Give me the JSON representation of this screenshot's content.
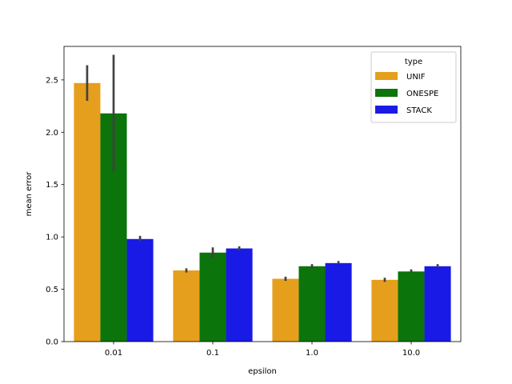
{
  "chart_data": {
    "type": "bar",
    "xlabel": "epsilon",
    "ylabel": "mean error",
    "categories": [
      "0.01",
      "0.1",
      "1.0",
      "10.0"
    ],
    "ylim": [
      0,
      2.82
    ],
    "yticks": [
      0.0,
      0.5,
      1.0,
      1.5,
      2.0,
      2.5
    ],
    "ytick_labels": [
      "0.0",
      "0.5",
      "1.0",
      "1.5",
      "2.0",
      "2.5"
    ],
    "legend": {
      "title": "type",
      "position": "top-right"
    },
    "series": [
      {
        "name": "UNIF",
        "color": "#e69f1c",
        "values": [
          2.47,
          0.68,
          0.6,
          0.59
        ],
        "err_low": [
          2.3,
          0.66,
          0.58,
          0.57
        ],
        "err_high": [
          2.64,
          0.7,
          0.62,
          0.61
        ]
      },
      {
        "name": "ONESPE",
        "color": "#0b740b",
        "values": [
          2.18,
          0.85,
          0.72,
          0.67
        ],
        "err_low": [
          1.62,
          0.8,
          0.7,
          0.66
        ],
        "err_high": [
          2.74,
          0.9,
          0.74,
          0.69
        ]
      },
      {
        "name": "STACK",
        "color": "#1a1ae6",
        "values": [
          0.98,
          0.89,
          0.75,
          0.72
        ],
        "err_low": [
          0.96,
          0.87,
          0.74,
          0.71
        ],
        "err_high": [
          1.01,
          0.91,
          0.77,
          0.74
        ]
      }
    ]
  }
}
